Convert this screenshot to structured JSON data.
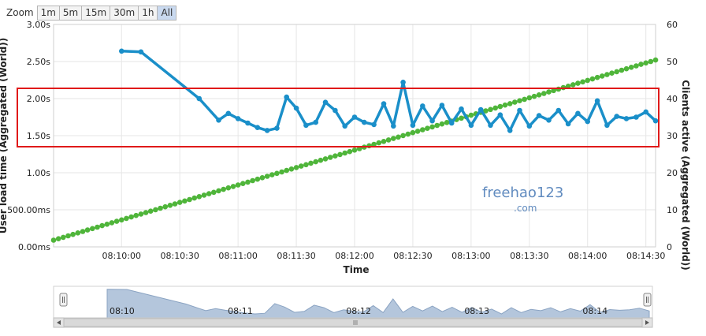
{
  "zoom": {
    "label": "Zoom",
    "buttons": [
      "1m",
      "5m",
      "15m",
      "30m",
      "1h",
      "All"
    ],
    "selected": "All"
  },
  "colors": {
    "response": "#1a8fc9",
    "clients": "#4fb53a",
    "highlight": "#e01a1a",
    "navigator_fill": "#b4c6dc",
    "navigator_line": "#8aa3c2",
    "grid": "#e6e6e6"
  },
  "watermark": {
    "line1": "freehao123",
    "line2": ".com"
  },
  "chart_data": {
    "type": "line",
    "xlabel": "Time",
    "ylabel_left": "User load time (Aggregated (World))",
    "ylabel_right": "Clients active (Aggregated (World))",
    "x_ticks": [
      "08:10:00",
      "08:10:30",
      "08:11:00",
      "08:11:30",
      "08:12:00",
      "08:12:30",
      "08:13:00",
      "08:13:30",
      "08:14:00",
      "08:14:30"
    ],
    "y_left_ticks": [
      "0.00ms",
      "500.00ms",
      "1.00s",
      "1.50s",
      "2.00s",
      "2.50s",
      "3.00s"
    ],
    "y_right_ticks": [
      "0",
      "10",
      "20",
      "30",
      "40",
      "50",
      "60"
    ],
    "xlim_seconds": [
      -35,
      275
    ],
    "ylim_left_s": [
      0,
      3
    ],
    "ylim_right": [
      0,
      60
    ],
    "grid": true,
    "series": [
      {
        "name": "User load time (Aggregated (World))",
        "x": [
          0,
          10,
          40,
          50,
          55,
          60,
          65,
          70,
          75,
          80,
          85,
          90,
          95,
          100,
          105,
          110,
          115,
          120,
          125,
          130,
          135,
          140,
          145,
          150,
          155,
          160,
          165,
          170,
          175,
          180,
          185,
          190,
          195,
          200,
          205,
          210,
          215,
          220,
          225,
          230,
          235,
          240,
          245,
          250,
          255,
          260,
          265,
          270,
          275
        ],
        "values": [
          2.64,
          2.63,
          2.0,
          1.71,
          1.8,
          1.73,
          1.67,
          1.61,
          1.57,
          1.6,
          2.02,
          1.87,
          1.64,
          1.68,
          1.95,
          1.84,
          1.63,
          1.75,
          1.68,
          1.65,
          1.93,
          1.63,
          2.22,
          1.64,
          1.9,
          1.7,
          1.91,
          1.67,
          1.86,
          1.64,
          1.85,
          1.64,
          1.78,
          1.57,
          1.84,
          1.63,
          1.77,
          1.71,
          1.84,
          1.66,
          1.8,
          1.69,
          1.97,
          1.64,
          1.76,
          1.73,
          1.75,
          1.82,
          1.7
        ]
      },
      {
        "name": "Clients active (Aggregated (World))",
        "x_start": -35,
        "x_step": 2.5,
        "count": 125,
        "y_start": 1.8,
        "y_end": 50.4
      }
    ],
    "navigator": {
      "labels": [
        "08:10",
        "08:11",
        "08:12",
        "08:13",
        "08:14"
      ]
    }
  }
}
